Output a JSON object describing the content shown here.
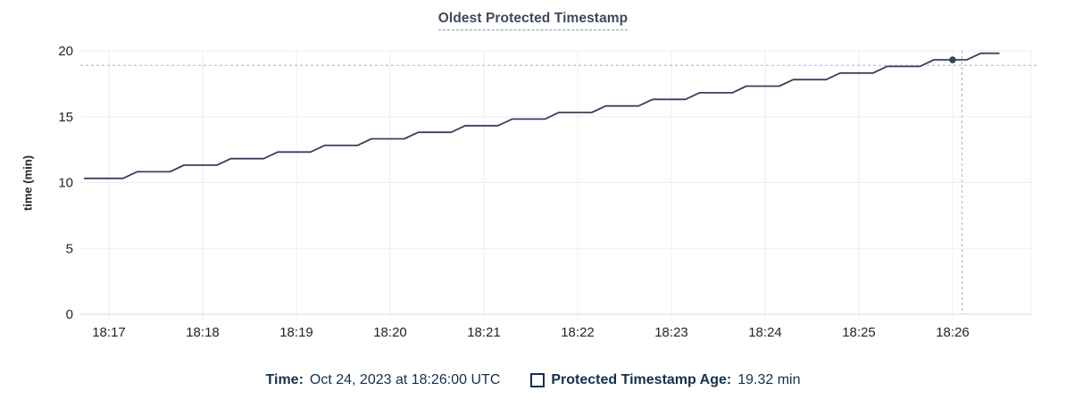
{
  "chart_data": {
    "type": "line",
    "title": "Oldest Protected Timestamp",
    "xlabel": "",
    "ylabel": "time (min)",
    "ylim": [
      0,
      20
    ],
    "y_ticks": [
      0,
      5,
      10,
      15,
      20
    ],
    "x_tick_labels": [
      "18:17",
      "18:18",
      "18:19",
      "18:20",
      "18:21",
      "18:22",
      "18:23",
      "18:24",
      "18:25",
      "18:26"
    ],
    "grid": true,
    "t_unit": "seconds since 18:17:00 UTC on Oct 24, 2023",
    "series": [
      {
        "name": "Protected Timestamp Age",
        "unit": "min",
        "color": "#36425c",
        "points": [
          [
            -16,
            10.32
          ],
          [
            9,
            10.32
          ],
          [
            18,
            10.82
          ],
          [
            39,
            10.82
          ],
          [
            48,
            11.32
          ],
          [
            69,
            11.32
          ],
          [
            78,
            11.82
          ],
          [
            99,
            11.82
          ],
          [
            108,
            12.32
          ],
          [
            129,
            12.32
          ],
          [
            138,
            12.82
          ],
          [
            159,
            12.82
          ],
          [
            168,
            13.32
          ],
          [
            189,
            13.32
          ],
          [
            198,
            13.82
          ],
          [
            219,
            13.82
          ],
          [
            228,
            14.32
          ],
          [
            249,
            14.32
          ],
          [
            258,
            14.82
          ],
          [
            279,
            14.82
          ],
          [
            288,
            15.32
          ],
          [
            309,
            15.32
          ],
          [
            318,
            15.82
          ],
          [
            339,
            15.82
          ],
          [
            348,
            16.32
          ],
          [
            369,
            16.32
          ],
          [
            378,
            16.82
          ],
          [
            399,
            16.82
          ],
          [
            408,
            17.32
          ],
          [
            429,
            17.32
          ],
          [
            438,
            17.82
          ],
          [
            459,
            17.82
          ],
          [
            468,
            18.32
          ],
          [
            489,
            18.32
          ],
          [
            498,
            18.82
          ],
          [
            519,
            18.82
          ],
          [
            528,
            19.32
          ],
          [
            549,
            19.32
          ],
          [
            558,
            19.82
          ],
          [
            570,
            19.82
          ]
        ]
      }
    ],
    "hover": {
      "highlight_point": {
        "t": 540,
        "value": 19.32,
        "time_label": "18:26:00"
      },
      "crosshair": {
        "t": 546,
        "value": 18.9
      }
    },
    "legend_position": "bottom-center"
  },
  "legend": {
    "time_label": "Time:",
    "time_value": "Oct 24, 2023 at 18:26:00 UTC",
    "series_label": "Protected Timestamp Age:",
    "series_value": "19.32 min"
  },
  "colors": {
    "series_line": "#36425c",
    "hover_dot": "#36425c",
    "crosshair": "#a0b6c5",
    "gridline": "#ededed",
    "axis_line": "#d9d9d9",
    "tick_text": "#242424",
    "title_text": "#3e4a5e",
    "legend_text": "#14304d",
    "title_underline": "#8d99ab",
    "background": "#ffffff"
  }
}
